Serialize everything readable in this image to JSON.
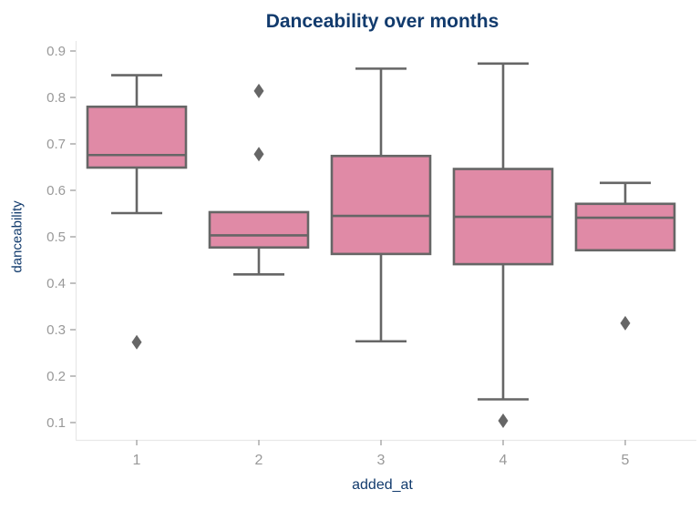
{
  "title": "Danceability over months",
  "colors": {
    "title": "#123b6d",
    "axis_label": "#123b6d",
    "tick_label": "#999999",
    "spine": "#e8e8e8",
    "tick_mark": "#aaaaaa",
    "box_fill": "#e08aa6",
    "box_stroke": "#666666",
    "outlier": "#666666",
    "background": "#ffffff"
  },
  "chart_data": {
    "type": "box",
    "title": "Danceability over months",
    "xlabel": "added_at",
    "ylabel": "danceability",
    "categories": [
      "1",
      "2",
      "3",
      "4",
      "5"
    ],
    "yticks": [
      0.9,
      0.8,
      0.7,
      0.6,
      0.5,
      0.4,
      0.3,
      0.2,
      0.1
    ],
    "ytick_labels": [
      "0.9",
      "0.8",
      "0.7",
      "0.6",
      "0.5",
      "0.4",
      "0.3",
      "0.2",
      "0.1"
    ],
    "ylim": [
      0.06,
      0.92
    ],
    "grid": false,
    "legend": null,
    "boxes": [
      {
        "category": "1",
        "whisker_low": 0.551,
        "q1": 0.649,
        "median": 0.676,
        "q3": 0.78,
        "whisker_high": 0.848,
        "outliers": [
          0.273
        ]
      },
      {
        "category": "2",
        "whisker_low": 0.419,
        "q1": 0.477,
        "median": 0.503,
        "q3": 0.553,
        "whisker_high": 0.553,
        "outliers": [
          0.814,
          0.678
        ]
      },
      {
        "category": "3",
        "whisker_low": 0.275,
        "q1": 0.463,
        "median": 0.545,
        "q3": 0.674,
        "whisker_high": 0.862,
        "outliers": []
      },
      {
        "category": "4",
        "whisker_low": 0.15,
        "q1": 0.441,
        "median": 0.543,
        "q3": 0.646,
        "whisker_high": 0.873,
        "outliers": [
          0.104
        ]
      },
      {
        "category": "5",
        "whisker_low": 0.471,
        "q1": 0.471,
        "median": 0.541,
        "q3": 0.571,
        "whisker_high": 0.616,
        "outliers": [
          0.314
        ]
      }
    ]
  }
}
